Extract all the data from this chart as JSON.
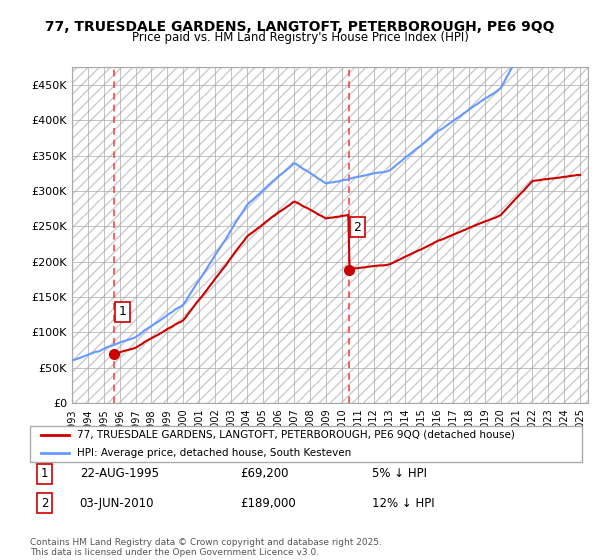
{
  "title": "77, TRUESDALE GARDENS, LANGTOFT, PETERBOROUGH, PE6 9QQ",
  "subtitle": "Price paid vs. HM Land Registry's House Price Index (HPI)",
  "legend_line1": "77, TRUESDALE GARDENS, LANGTOFT, PETERBOROUGH, PE6 9QQ (detached house)",
  "legend_line2": "HPI: Average price, detached house, South Kesteven",
  "annotation1_label": "1",
  "annotation1_date": "22-AUG-1995",
  "annotation1_price": "£69,200",
  "annotation1_hpi": "5% ↓ HPI",
  "annotation2_label": "2",
  "annotation2_date": "03-JUN-2010",
  "annotation2_price": "£189,000",
  "annotation2_hpi": "12% ↓ HPI",
  "footer": "Contains HM Land Registry data © Crown copyright and database right 2025.\nThis data is licensed under the Open Government Licence v3.0.",
  "hpi_color": "#6699ff",
  "sale_color": "#cc0000",
  "dashed_line_color": "#ff4444",
  "background_color": "#ffffff",
  "plot_bg_color": "#f5f5f5",
  "hatch_color": "#dddddd",
  "ylim": [
    0,
    475000
  ],
  "yticks": [
    0,
    50000,
    100000,
    150000,
    200000,
    250000,
    300000,
    350000,
    400000,
    450000
  ],
  "sale1_year": 1995.65,
  "sale1_price": 69200,
  "sale2_year": 2010.43,
  "sale2_price": 189000
}
